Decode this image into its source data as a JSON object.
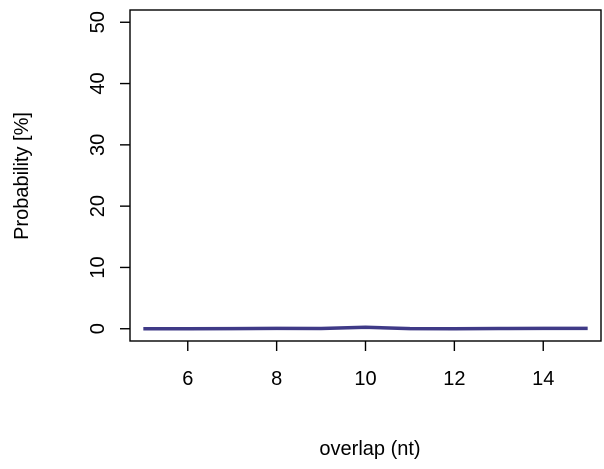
{
  "chart_data": {
    "type": "line",
    "title": "",
    "xlabel": "overlap (nt)",
    "ylabel": "Probability [%]",
    "xlim": [
      4.7,
      15.3
    ],
    "ylim": [
      -2,
      52
    ],
    "xticks": [
      6,
      8,
      10,
      12,
      14
    ],
    "yticks": [
      0,
      10,
      20,
      30,
      40,
      50
    ],
    "xtick_labels": [
      "6",
      "8",
      "10",
      "12",
      "14"
    ],
    "ytick_labels": [
      "0",
      "10",
      "20",
      "30",
      "40",
      "50"
    ],
    "grid": false,
    "legend": "none",
    "series": [
      {
        "color": "#3f3a87",
        "x": [
          5,
          6,
          7,
          8,
          9,
          10,
          11,
          12,
          13,
          14,
          15
        ],
        "y": [
          0.0,
          0.0,
          0.02,
          0.05,
          0.03,
          0.25,
          0.02,
          0.0,
          0.03,
          0.06,
          0.05
        ]
      }
    ]
  }
}
